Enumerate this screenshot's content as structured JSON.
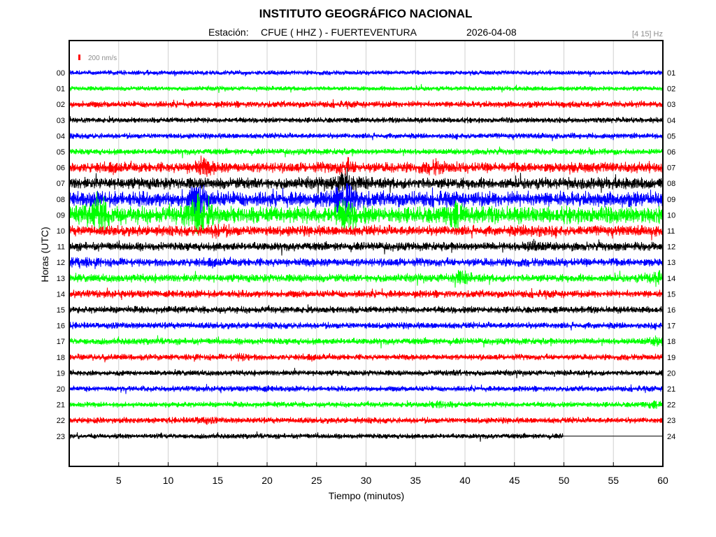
{
  "chart_data": {
    "type": "line",
    "title": "INSTITUTO GEOGRÁFICO NACIONAL",
    "station_prefix": "Estación:",
    "station": "CFUE ( HHZ ) - FUERTEVENTURA",
    "date": "2026-04-08",
    "filter": "[4 15] Hz",
    "scale_label": "200 nm/s",
    "xlabel": "Tiempo (minutos)",
    "ylabel": "Horas (UTC)",
    "xlim": [
      0,
      60
    ],
    "x_ticks": [
      5,
      10,
      15,
      20,
      25,
      30,
      35,
      40,
      45,
      50,
      55,
      60
    ],
    "grid": true,
    "trace_colors": [
      "#0000ff",
      "#00ff00",
      "#ff0000",
      "#000000"
    ],
    "hour_labels_left": [
      "00",
      "01",
      "02",
      "03",
      "04",
      "05",
      "06",
      "07",
      "08",
      "09",
      "10",
      "11",
      "12",
      "13",
      "14",
      "15",
      "16",
      "17",
      "18",
      "19",
      "20",
      "21",
      "22",
      "23"
    ],
    "hour_labels_right": [
      "01",
      "02",
      "03",
      "04",
      "05",
      "06",
      "07",
      "08",
      "09",
      "10",
      "11",
      "12",
      "13",
      "14",
      "15",
      "16",
      "17",
      "18",
      "19",
      "20",
      "21",
      "22",
      "23",
      "24"
    ],
    "trace_amplitude": [
      1.0,
      1.0,
      1.4,
      1.2,
      1.2,
      1.3,
      2.2,
      2.4,
      3.2,
      3.6,
      2.2,
      1.8,
      1.8,
      1.7,
      1.6,
      1.5,
      1.4,
      1.4,
      1.3,
      1.2,
      1.2,
      1.2,
      1.3,
      1.1
    ],
    "trace_end_minute": [
      60,
      60,
      60,
      60,
      60,
      60,
      60,
      60,
      60,
      60,
      60,
      60,
      60,
      60,
      60,
      60,
      60,
      60,
      60,
      60,
      60,
      60,
      60,
      50
    ],
    "events": [
      {
        "hour": 6,
        "minute": 13.5,
        "amp": 2.5
      },
      {
        "hour": 6,
        "minute": 28,
        "amp": 2.0
      },
      {
        "hour": 6,
        "minute": 37,
        "amp": 1.8
      },
      {
        "hour": 7,
        "minute": 28,
        "amp": 3.0
      },
      {
        "hour": 8,
        "minute": 13,
        "amp": 3.0
      },
      {
        "hour": 8,
        "minute": 28,
        "amp": 3.5
      },
      {
        "hour": 9,
        "minute": 3,
        "amp": 3.0
      },
      {
        "hour": 9,
        "minute": 13,
        "amp": 3.5
      },
      {
        "hour": 9,
        "minute": 28,
        "amp": 2.5
      },
      {
        "hour": 9,
        "minute": 39,
        "amp": 2.0
      },
      {
        "hour": 10,
        "minute": 15,
        "amp": 1.8
      },
      {
        "hour": 10,
        "minute": 47,
        "amp": 1.8
      },
      {
        "hour": 11,
        "minute": 47,
        "amp": 1.8
      },
      {
        "hour": 12,
        "minute": 1,
        "amp": 1.6
      },
      {
        "hour": 13,
        "minute": 39.5,
        "amp": 2.5
      },
      {
        "hour": 13,
        "minute": 59.5,
        "amp": 2.5
      },
      {
        "hour": 17,
        "minute": 59.5,
        "amp": 2.0
      },
      {
        "hour": 18,
        "minute": 17.5,
        "amp": 1.8
      },
      {
        "hour": 19,
        "minute": 39.5,
        "amp": 1.5
      },
      {
        "hour": 20,
        "minute": 19.5,
        "amp": 1.5
      },
      {
        "hour": 21,
        "minute": 37.5,
        "amp": 2.0
      },
      {
        "hour": 21,
        "minute": 59,
        "amp": 1.8
      },
      {
        "hour": 22,
        "minute": 13.5,
        "amp": 1.8
      }
    ]
  }
}
